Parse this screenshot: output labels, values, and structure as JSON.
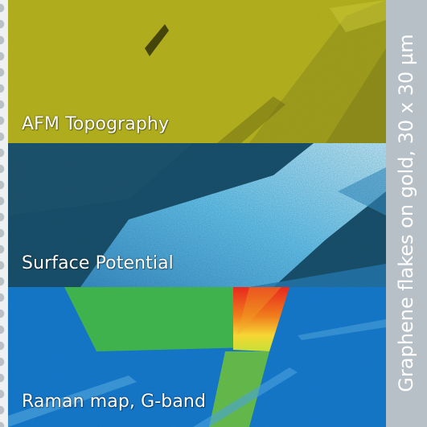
{
  "panels": [
    {
      "label": "AFM Topography",
      "color": "#b4b223"
    },
    {
      "label": "Surface Potential",
      "color": "#1d4d66"
    },
    {
      "label": "Raman map, G-band",
      "color": "#1b72c4"
    }
  ],
  "side_caption": "Graphene flakes on gold, 30 x 30 µm",
  "colors": {
    "side_bar": "#b7c0c7",
    "left_edge": "#eef0f2"
  }
}
